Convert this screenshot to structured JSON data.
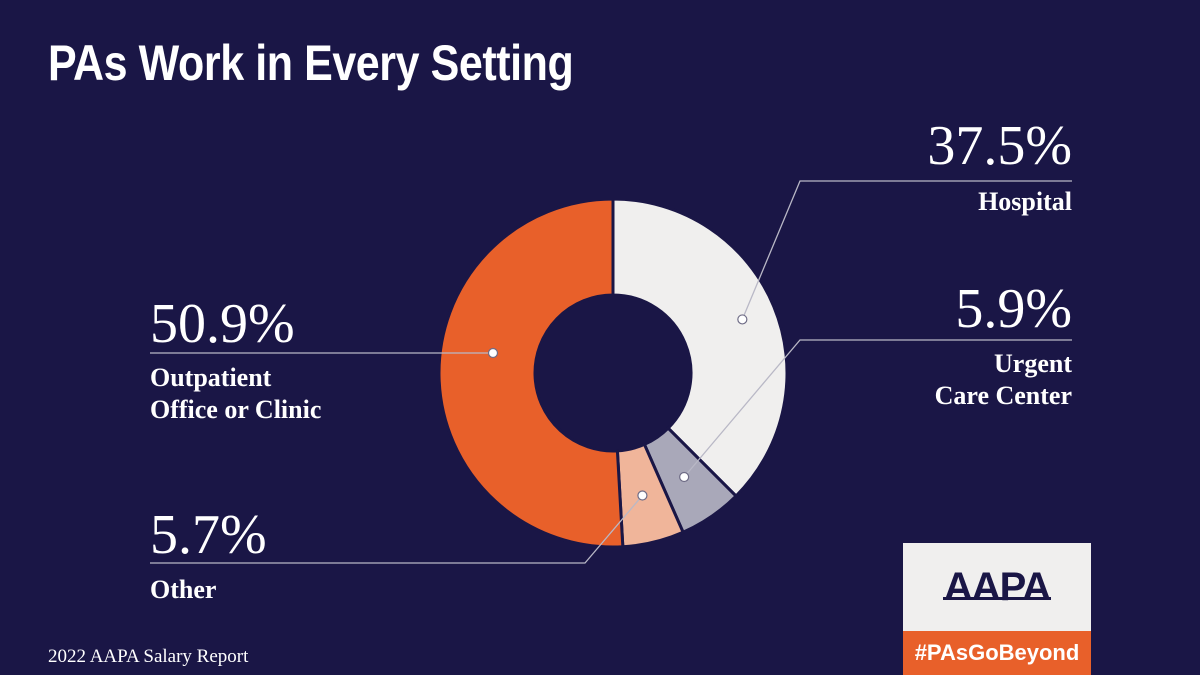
{
  "title": "PAs Work in Every Setting",
  "footer": "2022 AAPA Salary Report",
  "logo": {
    "text": "AAPA",
    "hashtag": "#PAsGoBeyond"
  },
  "colors": {
    "background": "#1a1646",
    "outpatient": "#e8602a",
    "hospital": "#f0efee",
    "urgent": "#a9a8b9",
    "other": "#f0b59a"
  },
  "chart_data": {
    "type": "pie",
    "title": "PAs Work in Every Setting",
    "donut": true,
    "slices": [
      {
        "label": "Hospital",
        "value": 37.5,
        "value_label": "37.5%",
        "color": "#f0efee"
      },
      {
        "label": "Urgent Care Center",
        "label_lines": [
          "Urgent",
          "Care Center"
        ],
        "value": 5.9,
        "value_label": "5.9%",
        "color": "#a9a8b9"
      },
      {
        "label": "Other",
        "value": 5.7,
        "value_label": "5.7%",
        "color": "#f0b59a"
      },
      {
        "label": "Outpatient Office or Clinic",
        "label_lines": [
          "Outpatient",
          "Office or Clinic"
        ],
        "value": 50.9,
        "value_label": "50.9%",
        "color": "#e8602a"
      }
    ]
  }
}
